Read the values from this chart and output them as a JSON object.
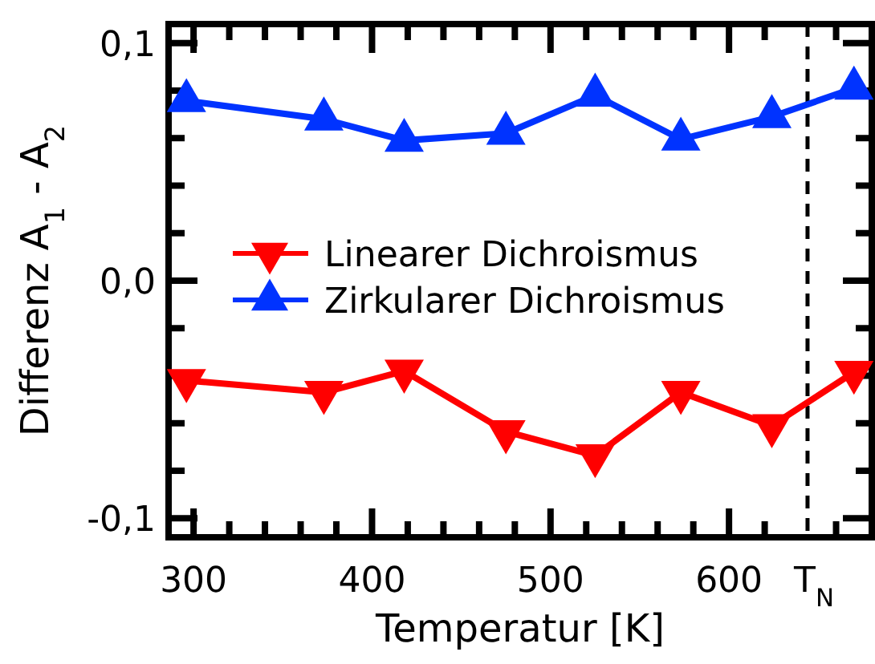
{
  "chart_data": {
    "type": "line",
    "xlabel": "Temperatur [K]",
    "ylabel": "Differenz A$_{1}$ - A$_{2}$",
    "xlim": [
      286,
      680
    ],
    "ylim": [
      -0.108,
      0.108
    ],
    "xticks": [
      {
        "value": 300,
        "label": "300"
      },
      {
        "value": 320,
        "label": null
      },
      {
        "value": 340,
        "label": null
      },
      {
        "value": 360,
        "label": null
      },
      {
        "value": 380,
        "label": null
      },
      {
        "value": 400,
        "label": "400"
      },
      {
        "value": 420,
        "label": null
      },
      {
        "value": 440,
        "label": null
      },
      {
        "value": 460,
        "label": null
      },
      {
        "value": 480,
        "label": null
      },
      {
        "value": 500,
        "label": "500"
      },
      {
        "value": 520,
        "label": null
      },
      {
        "value": 540,
        "label": null
      },
      {
        "value": 560,
        "label": null
      },
      {
        "value": 580,
        "label": null
      },
      {
        "value": 600,
        "label": "600"
      },
      {
        "value": 620,
        "label": null
      },
      {
        "value": 660,
        "label": null
      }
    ],
    "yticks": [
      {
        "value": -0.1,
        "label": "-0,1"
      },
      {
        "value": -0.08,
        "label": null
      },
      {
        "value": -0.06,
        "label": null
      },
      {
        "value": -0.04,
        "label": null
      },
      {
        "value": -0.02,
        "label": null
      },
      {
        "value": 0,
        "label": "0,0"
      },
      {
        "value": 0.02,
        "label": null
      },
      {
        "value": 0.04,
        "label": null
      },
      {
        "value": 0.06,
        "label": null
      },
      {
        "value": 0.08,
        "label": null
      },
      {
        "value": 0.1,
        "label": "0,1"
      }
    ],
    "x": [
      296,
      373,
      418,
      475,
      525,
      573,
      624,
      670
    ],
    "series": [
      {
        "name": "Linearer Dichroismus",
        "color": "#ff0000",
        "marker": "triangle",
        "values": [
          -0.042,
          -0.047,
          -0.038,
          -0.0635,
          -0.0736,
          -0.047,
          -0.061,
          -0.0385
        ]
      },
      {
        "name": "Zirkularer Dichroismus",
        "color": "#0033ff",
        "marker": "triangle",
        "values": [
          0.0757,
          0.068,
          0.059,
          0.062,
          0.078,
          0.0595,
          0.069,
          0.081
        ]
      }
    ],
    "ref_lines": [
      {
        "axis": "x",
        "value": 644,
        "label": "T$_{N}$",
        "line_style": "dashed",
        "color": "#000000"
      }
    ],
    "legend": "left",
    "grid": false,
    "line_style": "solid"
  }
}
